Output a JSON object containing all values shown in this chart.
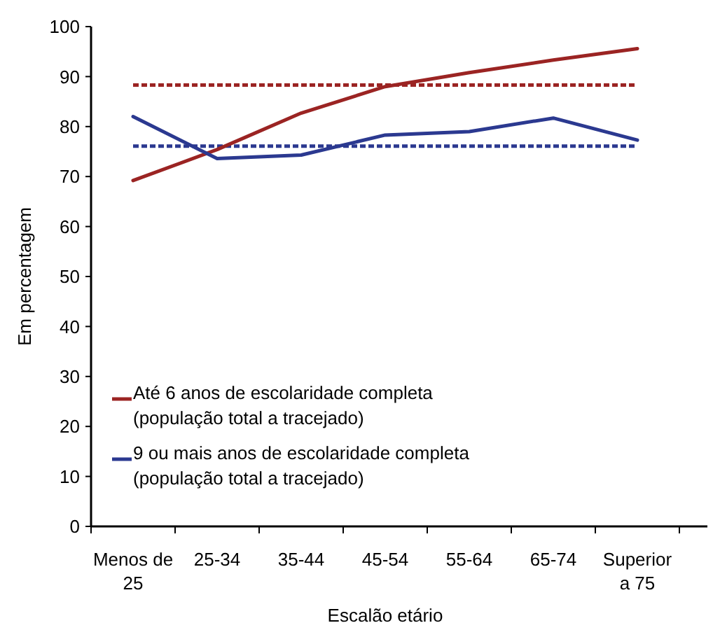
{
  "chart_data": {
    "type": "line",
    "xlabel": "Escalão etário",
    "ylabel": "Em percentagem",
    "categories": [
      "Menos de 25",
      "25-34",
      "35-44",
      "45-54",
      "55-64",
      "65-74",
      "Superior a 75"
    ],
    "series": [
      {
        "name": "Até 6 anos de escolaridade completa (população total a tracejado)",
        "color": "#9b2423",
        "values": [
          69.2,
          75.4,
          82.7,
          88.0,
          90.8,
          93.3,
          95.6
        ]
      },
      {
        "name": "9 ou mais anos de escolaridade completa (população total a tracejado)",
        "color": "#2b3990",
        "values": [
          82.0,
          73.6,
          74.3,
          78.3,
          79.0,
          81.7,
          77.3
        ]
      }
    ],
    "ref_lines": [
      {
        "axis": "y",
        "value": 88.3,
        "color": "#9b2423",
        "line_style": "dashed"
      },
      {
        "axis": "y",
        "value": 76.1,
        "color": "#2b3990",
        "line_style": "dashed"
      }
    ],
    "ylim": [
      0,
      100
    ],
    "yticks": [
      0,
      10,
      20,
      30,
      40,
      50,
      60,
      70,
      80,
      90,
      100
    ],
    "legend": "bottom left",
    "grid": false,
    "marker": "none",
    "line_style": "solid"
  }
}
